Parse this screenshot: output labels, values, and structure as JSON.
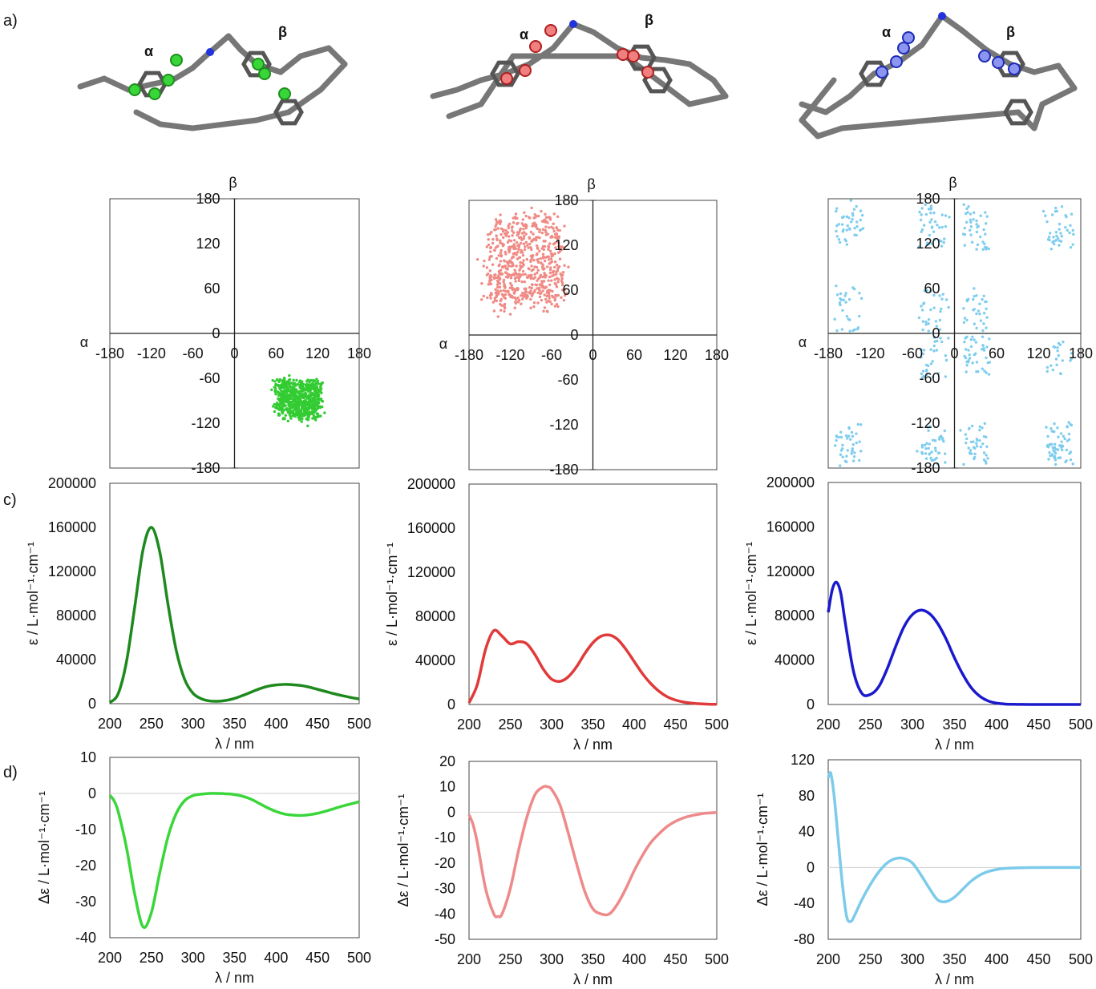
{
  "panel_labels": {
    "a": "a)",
    "c": "c)",
    "d": "d)"
  },
  "molecules": [
    {
      "alpha": "α",
      "beta": "β",
      "atom_color": "#39d639",
      "atom_dark": "#1d8f1d"
    },
    {
      "alpha": "α",
      "beta": "β",
      "atom_color": "#f08080",
      "atom_dark": "#b01e1e"
    },
    {
      "alpha": "α",
      "beta": "β",
      "atom_color": "#8c96f0",
      "atom_dark": "#1c2ab8"
    }
  ],
  "chart_data": [
    {
      "type": "scatter",
      "panel": "b",
      "column": 0,
      "xlabel": "α",
      "ylabel": "β",
      "xlim": [
        -180,
        180
      ],
      "ylim": [
        -180,
        180
      ],
      "xticks": [
        -180,
        -120,
        -60,
        0,
        60,
        120,
        180
      ],
      "yticks": [
        -180,
        -120,
        -60,
        0,
        60,
        120,
        180
      ],
      "color": "#33cc33",
      "clusters": [
        {
          "cx": 92,
          "cy": -88,
          "sx": 50,
          "sy": 40,
          "n": 650
        }
      ]
    },
    {
      "type": "scatter",
      "panel": "b",
      "column": 1,
      "xlabel": "α",
      "ylabel": "β",
      "xlim": [
        -180,
        180
      ],
      "ylim": [
        -180,
        180
      ],
      "xticks": [
        -180,
        -120,
        -60,
        0,
        60,
        120,
        180
      ],
      "yticks": [
        -180,
        -120,
        -60,
        0,
        60,
        120,
        180
      ],
      "color": "#f08a84",
      "clusters": [
        {
          "cx": -98,
          "cy": 98,
          "sx": 82,
          "sy": 92,
          "n": 650
        }
      ]
    },
    {
      "type": "scatter",
      "panel": "b",
      "column": 2,
      "xlabel": "α",
      "ylabel": "β",
      "xlim": [
        -180,
        180
      ],
      "ylim": [
        -180,
        180
      ],
      "xticks": [
        -180,
        -120,
        -60,
        0,
        60,
        120,
        180
      ],
      "yticks": [
        -180,
        -120,
        -60,
        0,
        60,
        120,
        180
      ],
      "color": "#7fcdee",
      "clusters": [
        {
          "cx": -150,
          "cy": 142,
          "sx": 30,
          "sy": 45,
          "n": 40
        },
        {
          "cx": -30,
          "cy": 142,
          "sx": 30,
          "sy": 45,
          "n": 40
        },
        {
          "cx": 30,
          "cy": 142,
          "sx": 30,
          "sy": 45,
          "n": 40
        },
        {
          "cx": 150,
          "cy": 142,
          "sx": 30,
          "sy": 45,
          "n": 40
        },
        {
          "cx": -150,
          "cy": 30,
          "sx": 30,
          "sy": 45,
          "n": 30
        },
        {
          "cx": -30,
          "cy": 30,
          "sx": 30,
          "sy": 45,
          "n": 30
        },
        {
          "cx": 30,
          "cy": 30,
          "sx": 30,
          "sy": 45,
          "n": 30
        },
        {
          "cx": -30,
          "cy": -30,
          "sx": 30,
          "sy": 45,
          "n": 30
        },
        {
          "cx": 30,
          "cy": -30,
          "sx": 30,
          "sy": 45,
          "n": 40
        },
        {
          "cx": 150,
          "cy": -30,
          "sx": 30,
          "sy": 45,
          "n": 20
        },
        {
          "cx": -150,
          "cy": -148,
          "sx": 30,
          "sy": 40,
          "n": 40
        },
        {
          "cx": -30,
          "cy": -148,
          "sx": 30,
          "sy": 40,
          "n": 40
        },
        {
          "cx": 30,
          "cy": -148,
          "sx": 30,
          "sy": 40,
          "n": 40
        },
        {
          "cx": 150,
          "cy": -148,
          "sx": 30,
          "sy": 40,
          "n": 60
        }
      ]
    },
    {
      "type": "line",
      "panel": "c",
      "column": 0,
      "xlabel": "λ / nm",
      "ylabel": "ε / L·mol⁻¹·cm⁻¹",
      "xlim": [
        200,
        500
      ],
      "ylim": [
        0,
        200000
      ],
      "xticks": [
        200,
        250,
        300,
        350,
        400,
        450,
        500
      ],
      "yticks": [
        0,
        40000,
        80000,
        120000,
        160000,
        200000
      ],
      "color": "#1e8a1e",
      "x": [
        200,
        210,
        220,
        230,
        240,
        250,
        260,
        270,
        280,
        290,
        300,
        310,
        320,
        330,
        340,
        350,
        360,
        370,
        380,
        390,
        400,
        410,
        420,
        430,
        440,
        450,
        460,
        470,
        480,
        490,
        500
      ],
      "y": [
        1000,
        9000,
        38000,
        88000,
        140000,
        160000,
        138000,
        90000,
        48000,
        22000,
        9500,
        4500,
        2500,
        2200,
        3000,
        4800,
        7500,
        10500,
        13500,
        15800,
        17000,
        17500,
        17200,
        16500,
        15000,
        13000,
        11000,
        9000,
        7200,
        5600,
        4300
      ]
    },
    {
      "type": "line",
      "panel": "c",
      "column": 1,
      "xlabel": "λ / nm",
      "ylabel": "ε / L·mol⁻¹·cm⁻¹",
      "xlim": [
        200,
        500
      ],
      "ylim": [
        0,
        200000
      ],
      "xticks": [
        200,
        250,
        300,
        350,
        400,
        450,
        500
      ],
      "yticks": [
        0,
        40000,
        80000,
        120000,
        160000,
        200000
      ],
      "color": "#e03a3a",
      "x": [
        200,
        210,
        220,
        230,
        240,
        250,
        260,
        270,
        280,
        290,
        300,
        310,
        320,
        330,
        340,
        350,
        360,
        370,
        380,
        390,
        400,
        410,
        420,
        430,
        440,
        450,
        460,
        470,
        480,
        490,
        500
      ],
      "y": [
        1500,
        18000,
        50000,
        67000,
        62000,
        55000,
        57000,
        55000,
        45000,
        32000,
        23000,
        21000,
        25000,
        34000,
        46000,
        56000,
        62000,
        63000,
        59000,
        50000,
        39000,
        28000,
        19000,
        12000,
        7000,
        4000,
        2200,
        1200,
        600,
        300,
        150
      ]
    },
    {
      "type": "line",
      "panel": "c",
      "column": 2,
      "xlabel": "λ / nm",
      "ylabel": "ε / L·mol⁻¹·cm⁻¹",
      "xlim": [
        200,
        500
      ],
      "ylim": [
        0,
        200000
      ],
      "xticks": [
        200,
        250,
        300,
        350,
        400,
        450,
        500
      ],
      "yticks": [
        0,
        40000,
        80000,
        120000,
        160000,
        200000
      ],
      "color": "#1a1acc",
      "x": [
        200,
        205,
        210,
        215,
        220,
        230,
        240,
        250,
        260,
        270,
        280,
        290,
        300,
        310,
        320,
        330,
        340,
        350,
        360,
        370,
        380,
        390,
        400,
        410,
        420,
        430,
        440,
        450,
        460,
        480,
        500
      ],
      "y": [
        83000,
        104000,
        110000,
        100000,
        75000,
        30000,
        10000,
        9000,
        16000,
        32000,
        52000,
        70000,
        81000,
        85000,
        82000,
        73000,
        59000,
        42000,
        27000,
        15000,
        7500,
        3200,
        1200,
        400,
        150,
        50,
        20,
        10,
        5,
        0,
        0
      ]
    },
    {
      "type": "line",
      "panel": "d",
      "column": 0,
      "xlabel": "λ / nm",
      "ylabel": "Δε / L·mol⁻¹·cm⁻¹",
      "xlim": [
        200,
        500
      ],
      "ylim": [
        -40,
        10
      ],
      "xticks": [
        200,
        250,
        300,
        350,
        400,
        450,
        500
      ],
      "yticks": [
        -40,
        -30,
        -20,
        -10,
        0,
        10
      ],
      "color": "#3ad63a",
      "x": [
        200,
        205,
        210,
        220,
        230,
        240,
        250,
        260,
        270,
        280,
        290,
        300,
        310,
        320,
        330,
        340,
        350,
        360,
        370,
        380,
        390,
        400,
        410,
        420,
        430,
        440,
        450,
        460,
        470,
        480,
        490,
        500
      ],
      "y": [
        -0.5,
        -2,
        -5,
        -15,
        -28,
        -37,
        -33,
        -22,
        -12,
        -5.5,
        -2,
        -0.6,
        -0.2,
        0,
        0,
        -0.1,
        -0.3,
        -0.8,
        -1.6,
        -2.8,
        -4,
        -5,
        -5.7,
        -6,
        -6.1,
        -5.9,
        -5.5,
        -4.9,
        -4.2,
        -3.5,
        -2.9,
        -2.3
      ]
    },
    {
      "type": "line",
      "panel": "d",
      "column": 1,
      "xlabel": "λ / nm",
      "ylabel": "Δε / L·mol⁻¹·cm⁻¹",
      "xlim": [
        200,
        500
      ],
      "ylim": [
        -50,
        20
      ],
      "xticks": [
        200,
        250,
        300,
        350,
        400,
        450,
        500
      ],
      "yticks": [
        -50,
        -40,
        -30,
        -20,
        -10,
        0,
        10,
        20
      ],
      "color": "#ee8a8a",
      "x": [
        200,
        205,
        210,
        220,
        230,
        235,
        240,
        250,
        260,
        270,
        280,
        290,
        295,
        300,
        310,
        320,
        330,
        340,
        350,
        360,
        370,
        380,
        390,
        400,
        410,
        420,
        430,
        440,
        450,
        460,
        470,
        480,
        490,
        500
      ],
      "y": [
        -1,
        -5,
        -12,
        -30,
        -40,
        -41,
        -40,
        -30,
        -15,
        -2,
        7,
        10,
        10,
        9,
        3,
        -8,
        -20,
        -31,
        -38,
        -40,
        -40,
        -36,
        -30,
        -23,
        -17,
        -12,
        -8.5,
        -5.6,
        -3.6,
        -2.2,
        -1.3,
        -0.7,
        -0.3,
        -0.1
      ]
    },
    {
      "type": "line",
      "panel": "d",
      "column": 2,
      "xlabel": "λ / nm",
      "ylabel": "Δε / L·mol⁻¹·cm⁻¹",
      "xlim": [
        200,
        500
      ],
      "ylim": [
        -80,
        120
      ],
      "xticks": [
        200,
        250,
        300,
        350,
        400,
        450,
        500
      ],
      "yticks": [
        -80,
        -40,
        0,
        40,
        80,
        120
      ],
      "color": "#7ccbeb",
      "x": [
        200,
        203,
        207,
        212,
        217,
        222,
        227,
        232,
        240,
        250,
        260,
        270,
        280,
        290,
        300,
        310,
        320,
        330,
        340,
        350,
        360,
        370,
        380,
        390,
        400,
        410,
        420,
        440,
        460,
        480,
        500
      ],
      "y": [
        100,
        105,
        80,
        30,
        -20,
        -55,
        -60,
        -52,
        -36,
        -19,
        -5,
        5,
        10,
        10,
        5,
        -8,
        -23,
        -36,
        -38,
        -33,
        -24,
        -15,
        -8.5,
        -4.5,
        -2.2,
        -1,
        -0.5,
        -0.1,
        0,
        0,
        0
      ]
    }
  ]
}
